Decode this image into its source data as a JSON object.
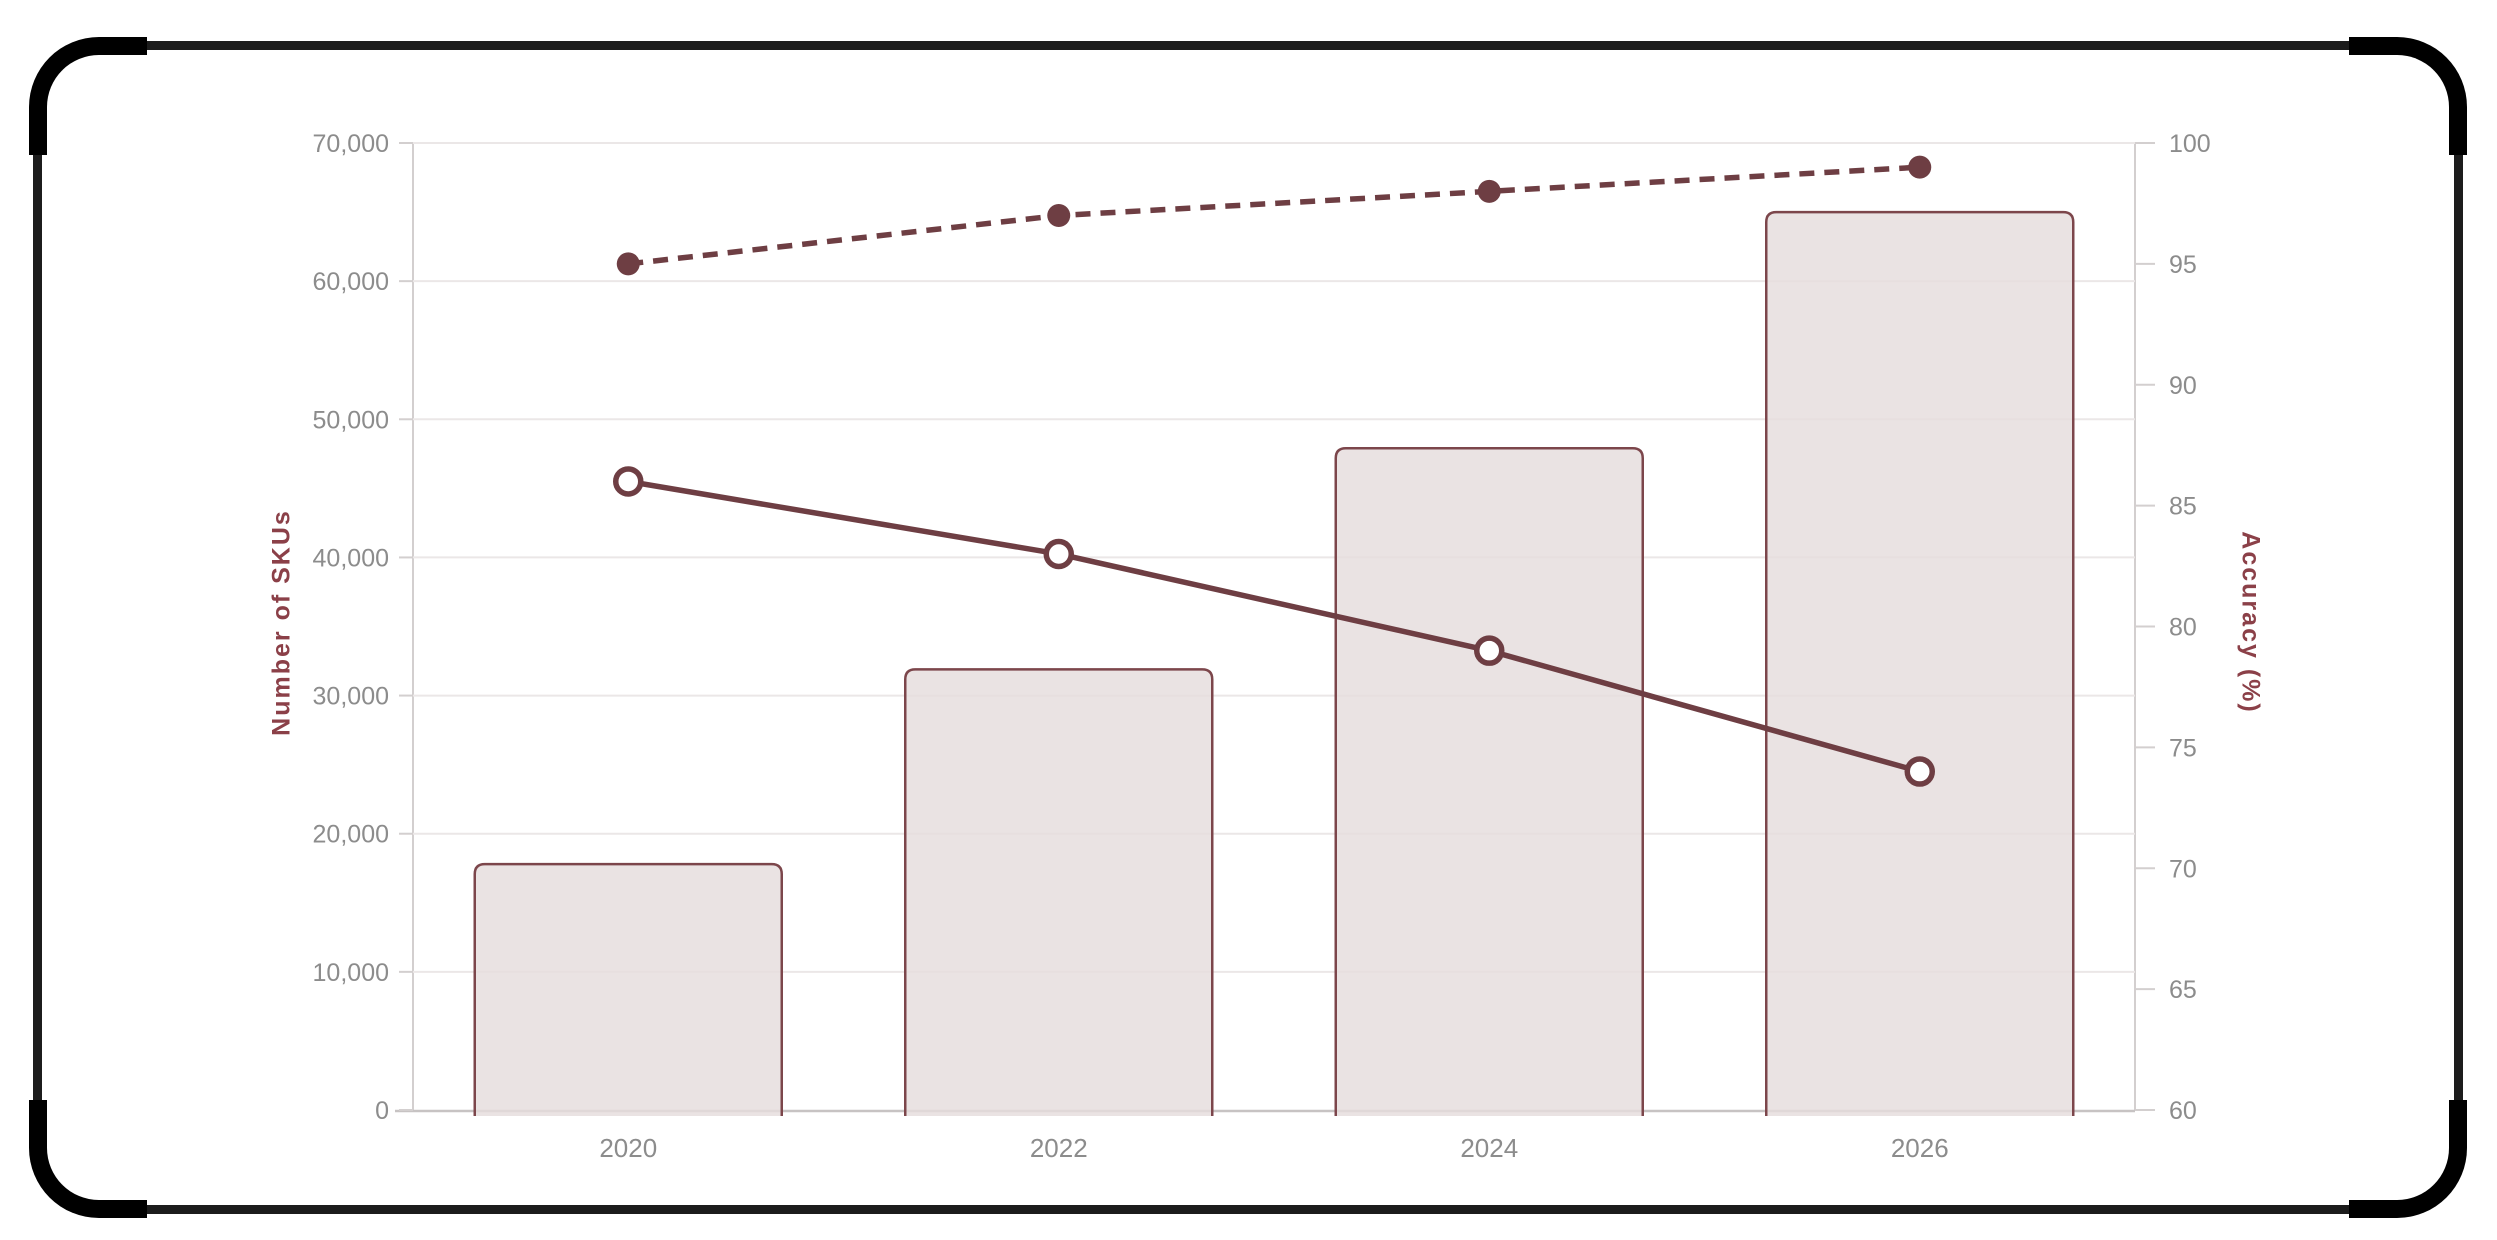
{
  "frame": {
    "border_color": "#1c1c1c",
    "corner_color": "#000000",
    "background_color": "#ffffff"
  },
  "chart_data": {
    "type": "combo-bar-line",
    "title": "",
    "legend": "none",
    "grid": true,
    "categories": [
      "2020",
      "2022",
      "2024",
      "2026"
    ],
    "series": [
      {
        "name": "Number of SKUs",
        "type": "bar",
        "axis": "left",
        "values": [
          17800,
          31900,
          47900,
          65000
        ]
      },
      {
        "name": "Accuracy (%) - solid line, open markers",
        "type": "line",
        "style": "solid",
        "marker": "open-circle",
        "axis": "right",
        "values": [
          86,
          83,
          79,
          74
        ]
      },
      {
        "name": "Accuracy (%) - dashed line, filled markers",
        "type": "line",
        "style": "dashed",
        "marker": "filled-circle",
        "axis": "right",
        "values": [
          95,
          97,
          98,
          99
        ]
      }
    ],
    "left_axis": {
      "title": "Number of SKUs",
      "min": 0,
      "max": 70000,
      "tick_step": 10000,
      "tick_labels": [
        "0",
        "10,000",
        "20,000",
        "30,000",
        "40,000",
        "50,000",
        "60,000",
        "70,000"
      ]
    },
    "right_axis": {
      "title": "Accuracy (%)",
      "min": 60,
      "max": 100,
      "tick_step": 5,
      "tick_labels": [
        "60",
        "65",
        "70",
        "75",
        "80",
        "85",
        "90",
        "95",
        "100"
      ]
    },
    "x_axis": {
      "tick_labels": [
        "2020",
        "2022",
        "2024",
        "2026"
      ]
    },
    "colors": {
      "maroon_line": "#6e3e43",
      "bar_fill": "#eae3e3",
      "bar_stroke": "#7c464b",
      "axis_title": "#8b4048",
      "tick_label": "#8c8c8c",
      "gridline": "#ebe7e7",
      "axis_line": "#d3cfcf"
    }
  }
}
